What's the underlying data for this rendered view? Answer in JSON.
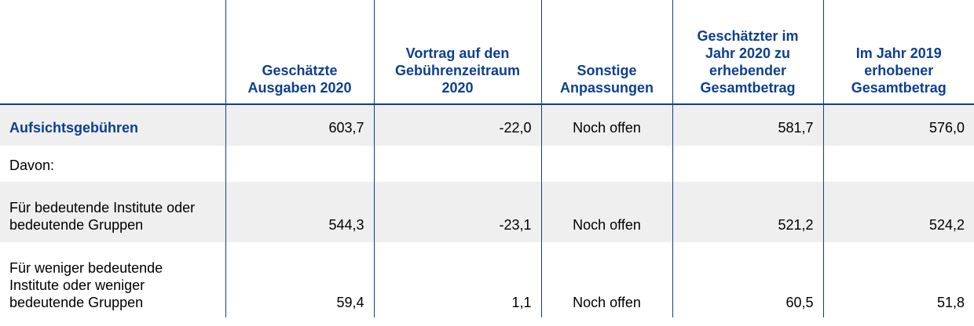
{
  "headers": [
    "",
    "Geschätzte Ausgaben 2020",
    "Vortrag auf den Gebührenzeitraum 2020",
    "Sonstige Anpassungen",
    "Geschätzter im Jahr 2020 zu erhebender Gesamtbetrag",
    "Im Jahr 2019 erhobener Gesamtbetrag"
  ],
  "rows": [
    {
      "label": "Aufsichtsgebühren",
      "values": [
        "603,7",
        "-22,0",
        "Noch offen",
        "581,7",
        "576,0"
      ]
    },
    {
      "label": "Davon:",
      "values": [
        "",
        "",
        "",
        "",
        ""
      ]
    },
    {
      "label": "Für bedeutende Institute oder bedeutende Gruppen",
      "values": [
        "544,3",
        "-23,1",
        "Noch offen",
        "521,2",
        "524,2"
      ]
    },
    {
      "label": "Für weniger bedeutende Institute oder weniger bedeutende Gruppen",
      "values": [
        "59,4",
        "1,1",
        "Noch offen",
        "60,5",
        "51,8"
      ]
    }
  ],
  "colors": {
    "accent": "#0d3f91",
    "row_shade": "#efefef"
  }
}
